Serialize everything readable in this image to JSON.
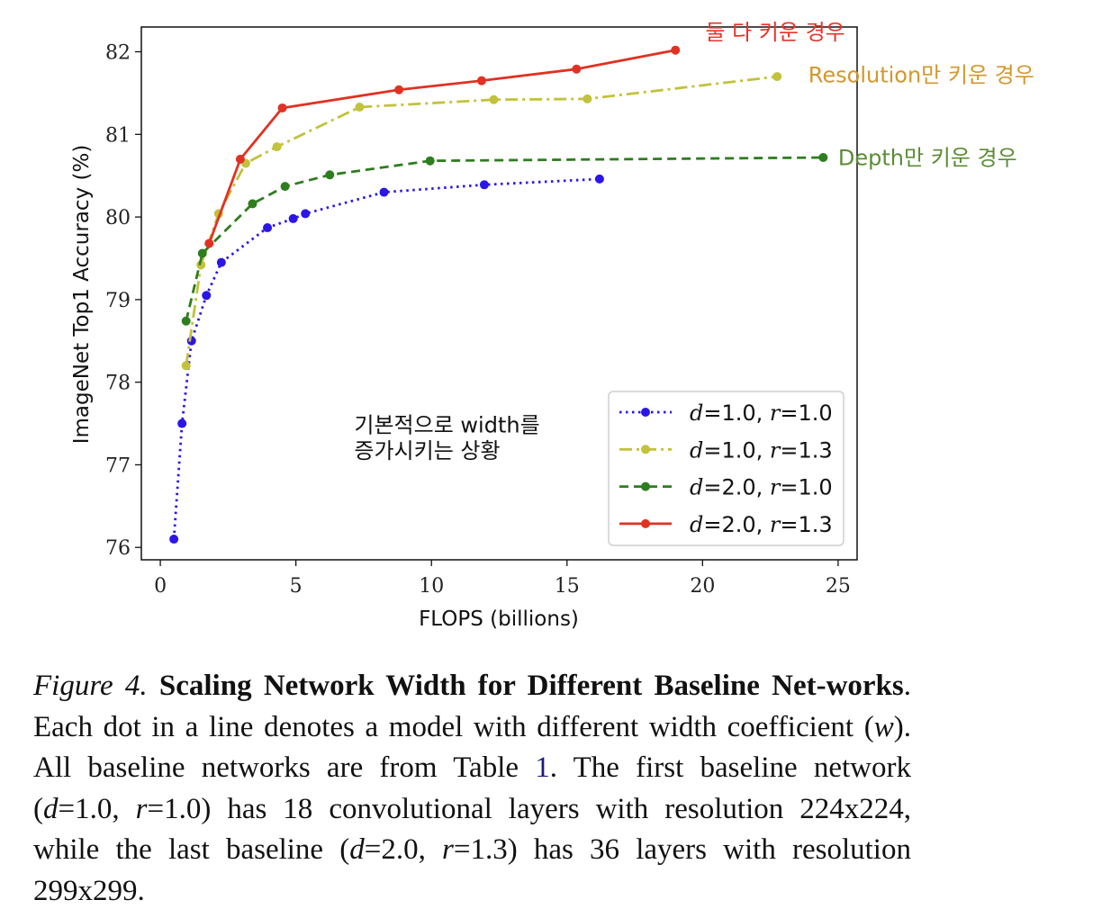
{
  "chart_data": {
    "type": "line",
    "xlabel": "FLOPS (billions)",
    "ylabel": "ImageNet Top1 Accuracy (%)",
    "xlim": [
      -0.7,
      25.7
    ],
    "ylim": [
      75.85,
      82.3
    ],
    "xticks": [
      0,
      5,
      10,
      15,
      20,
      25
    ],
    "yticks": [
      76,
      77,
      78,
      79,
      80,
      81,
      82
    ],
    "grid": false,
    "legend_position": "lower-right",
    "series": [
      {
        "name": "d=1.0, r=1.0",
        "legend_var1": "d",
        "legend_val1": "=1.0, ",
        "legend_var2": "r",
        "legend_val2": "=1.0",
        "color": "#2b16e8",
        "style": "dotted",
        "x": [
          0.5,
          0.8,
          1.15,
          1.7,
          2.25,
          3.95,
          4.9,
          5.35,
          8.25,
          11.95,
          16.2
        ],
        "y": [
          76.1,
          77.5,
          78.5,
          79.05,
          79.45,
          79.87,
          79.98,
          80.04,
          80.3,
          80.39,
          80.46
        ]
      },
      {
        "name": "d=1.0, r=1.3",
        "legend_var1": "d",
        "legend_val1": "=1.0, ",
        "legend_var2": "r",
        "legend_val2": "=1.3",
        "color": "#c2c23c",
        "style": "dashdot",
        "x": [
          0.95,
          1.5,
          2.15,
          3.15,
          4.3,
          7.35,
          12.3,
          15.75,
          22.75
        ],
        "y": [
          78.2,
          79.42,
          80.04,
          80.65,
          80.85,
          81.33,
          81.42,
          81.43,
          81.7
        ]
      },
      {
        "name": "d=2.0, r=1.0",
        "legend_var1": "d",
        "legend_val1": "=2.0, ",
        "legend_var2": "r",
        "legend_val2": "=1.0",
        "color": "#2e7d1e",
        "style": "dashed",
        "x": [
          0.95,
          1.55,
          3.4,
          4.6,
          6.25,
          9.95,
          24.45
        ],
        "y": [
          78.74,
          79.56,
          80.16,
          80.37,
          80.51,
          80.68,
          80.72
        ]
      },
      {
        "name": "d=2.0, r=1.3",
        "legend_var1": "d",
        "legend_val1": "=2.0, ",
        "legend_var2": "r",
        "legend_val2": "=1.3",
        "color": "#e03223",
        "style": "solid",
        "x": [
          1.8,
          2.95,
          4.5,
          8.8,
          11.85,
          15.35,
          19.0
        ],
        "y": [
          79.68,
          80.7,
          81.32,
          81.54,
          81.65,
          81.79,
          82.02
        ]
      }
    ],
    "annotations": [
      {
        "text": "둘 다 키운 경우",
        "color": "#e8332a",
        "x": 20.1,
        "y": 82.15
      },
      {
        "text": "Resolution만 키운 경우",
        "color": "#d4972a",
        "x": 23.9,
        "y": 81.63
      },
      {
        "text": "Depth만 키운 경우",
        "color": "#5b8c34",
        "x": 25.0,
        "y": 80.63
      },
      {
        "text": "기본적으로 width를",
        "color": "#111111",
        "x": 7.15,
        "y": 77.39
      },
      {
        "text": "증가시키는 상황",
        "color": "#111111",
        "x": 7.15,
        "y": 77.08
      }
    ]
  },
  "caption": {
    "fig_label": "Figure 4.",
    "title": "Scaling Network Width for Different Baseline Net-works",
    "text1": ". Each dot in a line denotes a model with different width coefficient (",
    "w": "w",
    "text2": "). All baseline networks are from Table ",
    "table_ref": "1",
    "text3": ". The first baseline network (",
    "d1": "d",
    "text4": "=1.0, ",
    "r1": "r",
    "text5": "=1.0) has 18 convolutional layers with resolution 224x224, while the last baseline (",
    "d2": "d",
    "text6": "=2.0, ",
    "r2": "r",
    "text7": "=1.3) has 36 layers with resolution 299x299."
  }
}
